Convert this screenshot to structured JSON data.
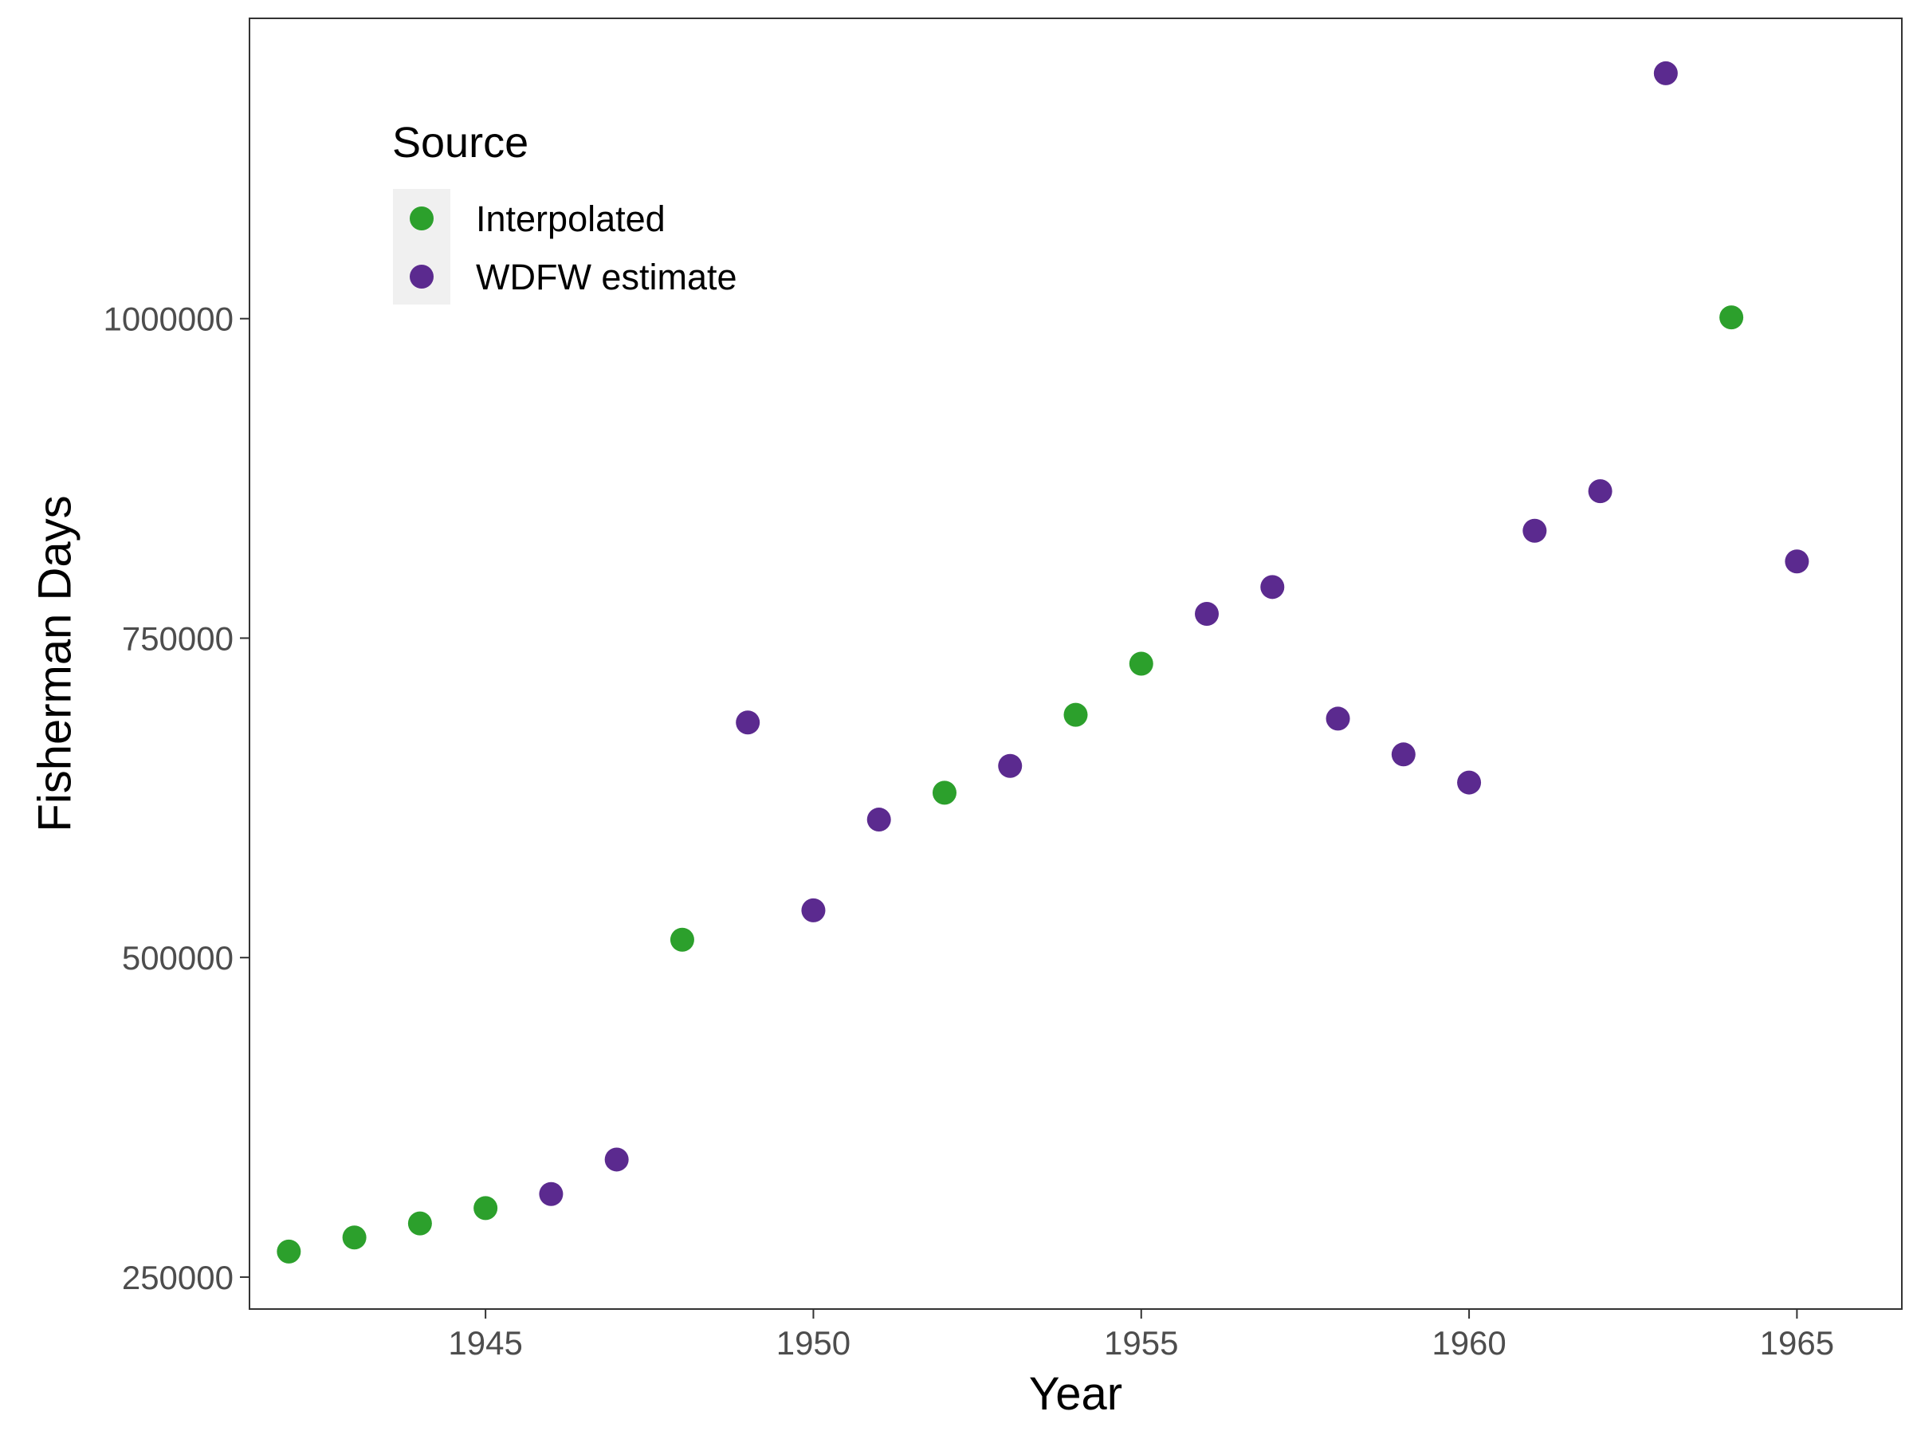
{
  "chart_data": {
    "type": "scatter",
    "title": "",
    "xlabel": "Year",
    "ylabel": "Fisherman Days",
    "xlim": [
      1941.4,
      1966.6
    ],
    "ylim": [
      225000,
      1235000
    ],
    "x_ticks": [
      1945,
      1950,
      1955,
      1960,
      1965
    ],
    "y_ticks": [
      250000,
      500000,
      750000,
      1000000
    ],
    "x_tick_labels": [
      "1945",
      "1950",
      "1955",
      "1960",
      "1965"
    ],
    "y_tick_labels": [
      "250000",
      "500000",
      "750000",
      "1000000"
    ],
    "grid": false,
    "legend": {
      "title": "Source",
      "position": "top-left inside",
      "entries": [
        "Interpolated",
        "WDFW estimate"
      ]
    },
    "colors": {
      "Interpolated": "#2ca02c",
      "WDFW estimate": "#5b2a8f"
    },
    "series": [
      {
        "name": "Interpolated",
        "x": [
          1942,
          1943,
          1944,
          1945,
          1948,
          1952,
          1954,
          1955,
          1964
        ],
        "y": [
          270000,
          281000,
          292000,
          304000,
          514000,
          629000,
          690000,
          730000,
          1001000
        ]
      },
      {
        "name": "WDFW estimate",
        "x": [
          1946,
          1947,
          1949,
          1950,
          1951,
          1953,
          1956,
          1957,
          1958,
          1959,
          1960,
          1961,
          1962,
          1963,
          1965
        ],
        "y": [
          315000,
          342000,
          684000,
          537000,
          608000,
          650000,
          769000,
          790000,
          687000,
          659000,
          637000,
          834000,
          865000,
          1192000,
          810000
        ]
      }
    ]
  }
}
